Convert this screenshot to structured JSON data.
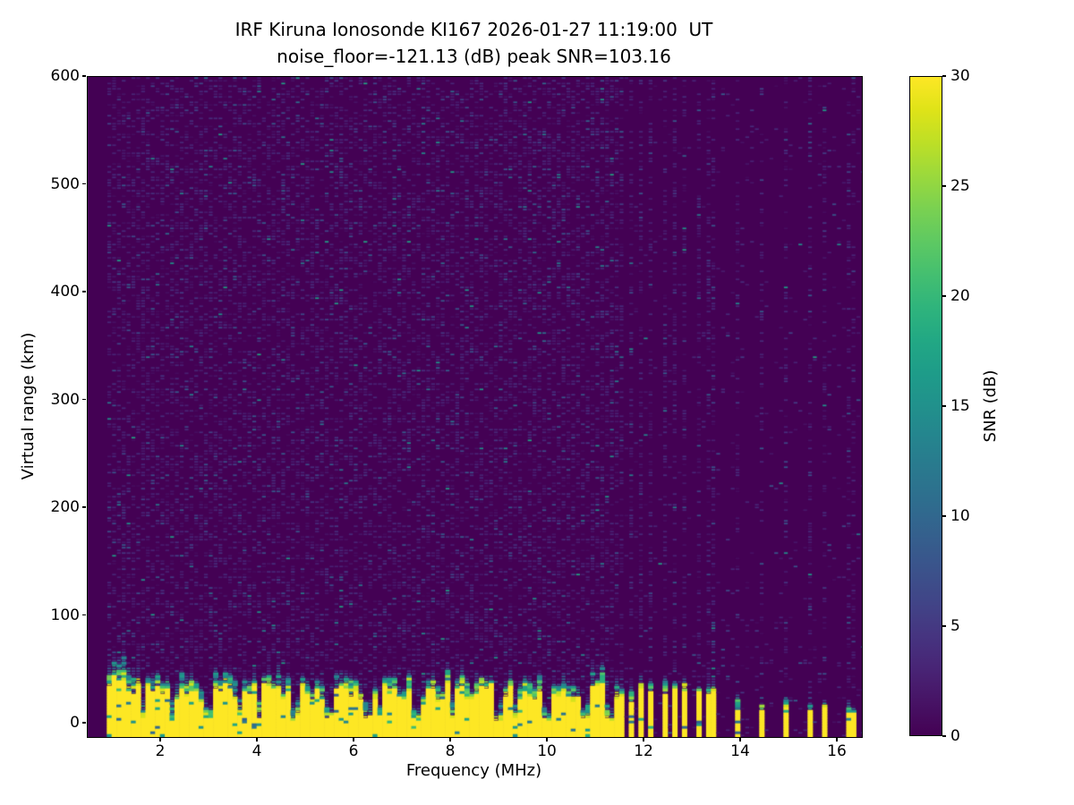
{
  "figure": {
    "background_color": "#ffffff",
    "station_id": "KI167",
    "observatory": "IRF Kiruna Ionosonde",
    "datetime_ut": "2026-01-27 11:19:00"
  },
  "chart_data": {
    "type": "heatmap",
    "title_line1": "IRF Kiruna Ionosonde KI167 2026-01-27 11:19:00  UT",
    "title_line2": "noise_floor=-121.13 (dB) peak SNR=103.16",
    "xlabel": "Frequency (MHz)",
    "ylabel": "Virtual range (km)",
    "colorbar_label": "SNR (dB)",
    "noise_floor_db": -121.13,
    "peak_snr_db": 103.16,
    "xlim": [
      0.48,
      16.5
    ],
    "ylim": [
      -12.4,
      600
    ],
    "clim": [
      0,
      30
    ],
    "x_ticks": [
      2,
      4,
      6,
      8,
      10,
      12,
      14,
      16
    ],
    "y_ticks": [
      0,
      100,
      200,
      300,
      400,
      500,
      600
    ],
    "colorbar_ticks": [
      0,
      5,
      10,
      15,
      20,
      25,
      30
    ],
    "grid": false,
    "legend": "colorbar-right",
    "sweep_start_mhz": 0.93,
    "continuous_clutter_end_mhz": 11.62,
    "ground_clutter_band": {
      "top_km_mean": 27,
      "top_km_min": 20,
      "top_km_max": 45,
      "transition_km": 16,
      "saturated_value_db": 30
    },
    "clutter_notch_freqs_mhz": [
      1.65,
      2.25,
      3.0,
      3.65,
      4.05,
      4.76,
      5.5,
      6.3,
      6.55,
      7.3,
      8.05,
      9.0,
      9.35,
      10.0,
      10.8,
      11.3
    ],
    "dense_stripe_freqs_mhz": [
      11.7,
      11.94,
      12.17,
      12.41,
      12.63,
      12.87,
      13.09,
      13.38,
      13.46
    ],
    "sparse_stripe_freqs_mhz": [
      13.97,
      14.45,
      14.95,
      15.45,
      15.72,
      16.28
    ],
    "noise": {
      "background_speckle_density": 0.4,
      "high_freq_background_density": 0.035,
      "high_freq_lowalt_density": 0.09,
      "stripe_column_density": 0.38,
      "sparse_stripe_column_density": 0.3,
      "seed": 20260127
    },
    "viridis_stops": [
      [
        0.0,
        "#440154"
      ],
      [
        0.05,
        "#471365"
      ],
      [
        0.1,
        "#482475"
      ],
      [
        0.15,
        "#463480"
      ],
      [
        0.2,
        "#414487"
      ],
      [
        0.25,
        "#3b528b"
      ],
      [
        0.3,
        "#355f8d"
      ],
      [
        0.35,
        "#2f6c8e"
      ],
      [
        0.4,
        "#2a788e"
      ],
      [
        0.45,
        "#25848e"
      ],
      [
        0.5,
        "#21918c"
      ],
      [
        0.55,
        "#1e9c89"
      ],
      [
        0.6,
        "#22a884"
      ],
      [
        0.65,
        "#2fb47c"
      ],
      [
        0.7,
        "#44bf70"
      ],
      [
        0.75,
        "#5ec962"
      ],
      [
        0.8,
        "#7ad151"
      ],
      [
        0.85,
        "#9bd93c"
      ],
      [
        0.9,
        "#bddf26"
      ],
      [
        0.95,
        "#dfe318"
      ],
      [
        1.0,
        "#fde725"
      ]
    ]
  }
}
